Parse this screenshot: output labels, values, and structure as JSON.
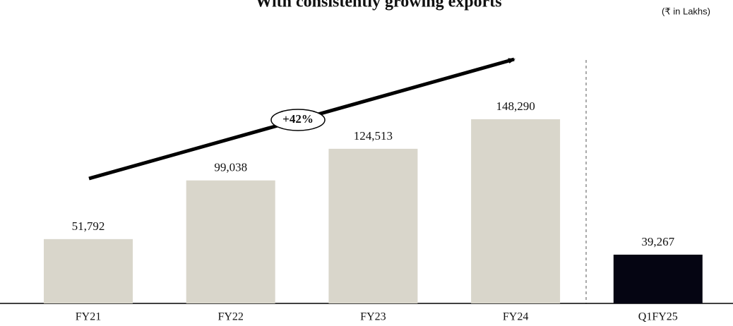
{
  "chart_data": {
    "type": "bar",
    "title": "With consistently growing exports",
    "unit_note": "(₹ in Lakhs)",
    "annotation": "+42%",
    "categories": [
      "FY21",
      "FY22",
      "FY23",
      "FY24",
      "Q1FY25"
    ],
    "values": [
      51792,
      99038,
      124513,
      148290,
      39267
    ],
    "value_labels": [
      "51,792",
      "99,038",
      "124,513",
      "148,290",
      "39,267"
    ],
    "colors": [
      "#d9d6cb",
      "#d9d6cb",
      "#d9d6cb",
      "#d9d6cb",
      "#050512"
    ],
    "ylim": [
      0,
      200000
    ]
  }
}
